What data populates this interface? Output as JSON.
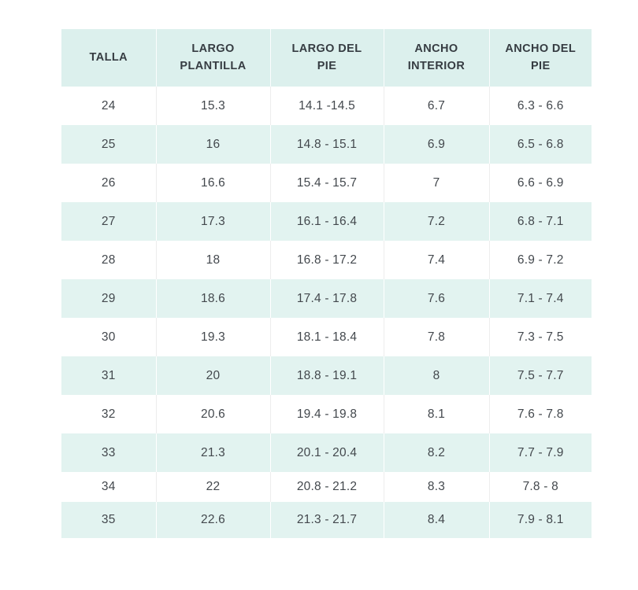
{
  "chart_data": {
    "type": "table",
    "columns": [
      "TALLA",
      "LARGO PLANTILLA",
      "LARGO DEL PIE",
      "ANCHO INTERIOR",
      "ANCHO DEL PIE"
    ],
    "rows": [
      [
        "24",
        "15.3",
        "14.1 -14.5",
        "6.7",
        "6.3 - 6.6"
      ],
      [
        "25",
        "16",
        "14.8 - 15.1",
        "6.9",
        "6.5 - 6.8"
      ],
      [
        "26",
        "16.6",
        "15.4 - 15.7",
        "7",
        "6.6 - 6.9"
      ],
      [
        "27",
        "17.3",
        "16.1 - 16.4",
        "7.2",
        "6.8 - 7.1"
      ],
      [
        "28",
        "18",
        "16.8 - 17.2",
        "7.4",
        "6.9 - 7.2"
      ],
      [
        "29",
        "18.6",
        "17.4 - 17.8",
        "7.6",
        "7.1 - 7.4"
      ],
      [
        "30",
        "19.3",
        "18.1 - 18.4",
        "7.8",
        "7.3 - 7.5"
      ],
      [
        "31",
        "20",
        "18.8 - 19.1",
        "8",
        "7.5 - 7.7"
      ],
      [
        "32",
        "20.6",
        "19.4 - 19.8",
        "8.1",
        "7.6 - 7.8"
      ],
      [
        "33",
        "21.3",
        "20.1 - 20.4",
        "8.2",
        "7.7 - 7.9"
      ],
      [
        "34",
        "22",
        "20.8 - 21.2",
        "8.3",
        "7.8 - 8"
      ],
      [
        "35",
        "22.6",
        "21.3 - 21.7",
        "8.4",
        "7.9 - 8.1"
      ]
    ],
    "layout": {
      "stripe_pattern": "first data row white, alternating mint stripes",
      "grid": "vertical dividers only"
    }
  },
  "colors": {
    "header_bg": "#dcf0ed",
    "stripe_bg": "#e2f3f0",
    "row_bg": "#ffffff",
    "header_text": "#363c42",
    "cell_text": "#43484d",
    "page_bg": "#ffffff"
  }
}
